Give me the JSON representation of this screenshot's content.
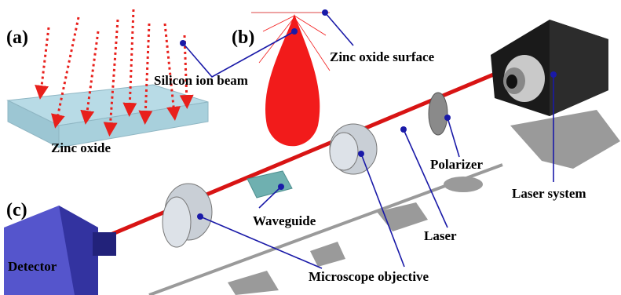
{
  "labels": {
    "panel_a": "(a)",
    "panel_b": "(b)",
    "panel_c": "(c)",
    "silicon_ion_beam": "Silicon ion beam",
    "zinc_oxide_surface": "Zinc oxide surface",
    "zinc_oxide": "Zinc oxide",
    "polarizer": "Polarizer",
    "laser_system": "Laser system",
    "waveguide": "Waveguide",
    "laser": "Laser",
    "detector": "Detector",
    "microscope_objective": "Microscope objective"
  }
}
